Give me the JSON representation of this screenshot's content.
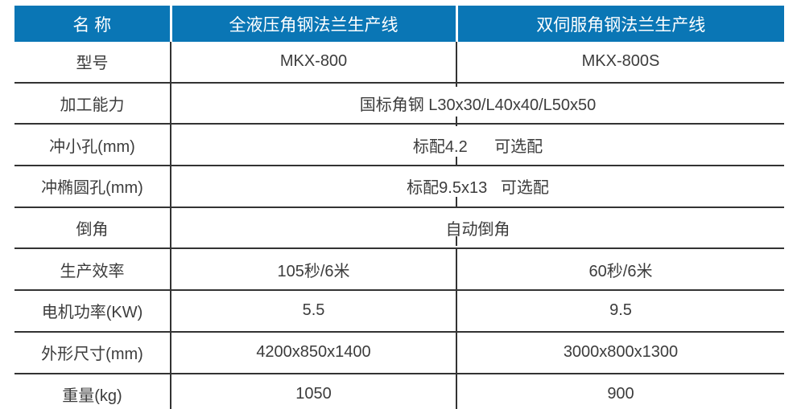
{
  "table": {
    "header": {
      "name": "名 称",
      "product1": "全液压角钢法兰生产线",
      "product2": "双伺服角钢法兰生产线"
    },
    "rows": [
      {
        "label": "型号",
        "value1": "MKX-800",
        "value2": "MKX-800S"
      },
      {
        "label": "加工能力",
        "value": "国标角钢 L30x30/L40x40/L50x50"
      },
      {
        "label": "冲小孔(mm)",
        "value": "标配4.2      可选配"
      },
      {
        "label": "冲椭圆孔(mm)",
        "value": "标配9.5x13   可选配"
      },
      {
        "label": "倒角",
        "value": "自动倒角"
      },
      {
        "label": "生产效率",
        "value1": "105秒/6米",
        "value2": "60秒/6米"
      },
      {
        "label": "电机功率(KW)",
        "value1": "5.5",
        "value2": "9.5"
      },
      {
        "label": "外形尺寸(mm)",
        "value1": "4200x850x1400",
        "value2": "3000x800x1300"
      },
      {
        "label": "重量(kg)",
        "value1": "1050",
        "value2": "900"
      }
    ]
  },
  "colors": {
    "page_bg": "#ffffff",
    "header_bg": "#0a76b5",
    "header_text": "#ffffff",
    "border": "#333333",
    "text": "#3c3c3c"
  }
}
